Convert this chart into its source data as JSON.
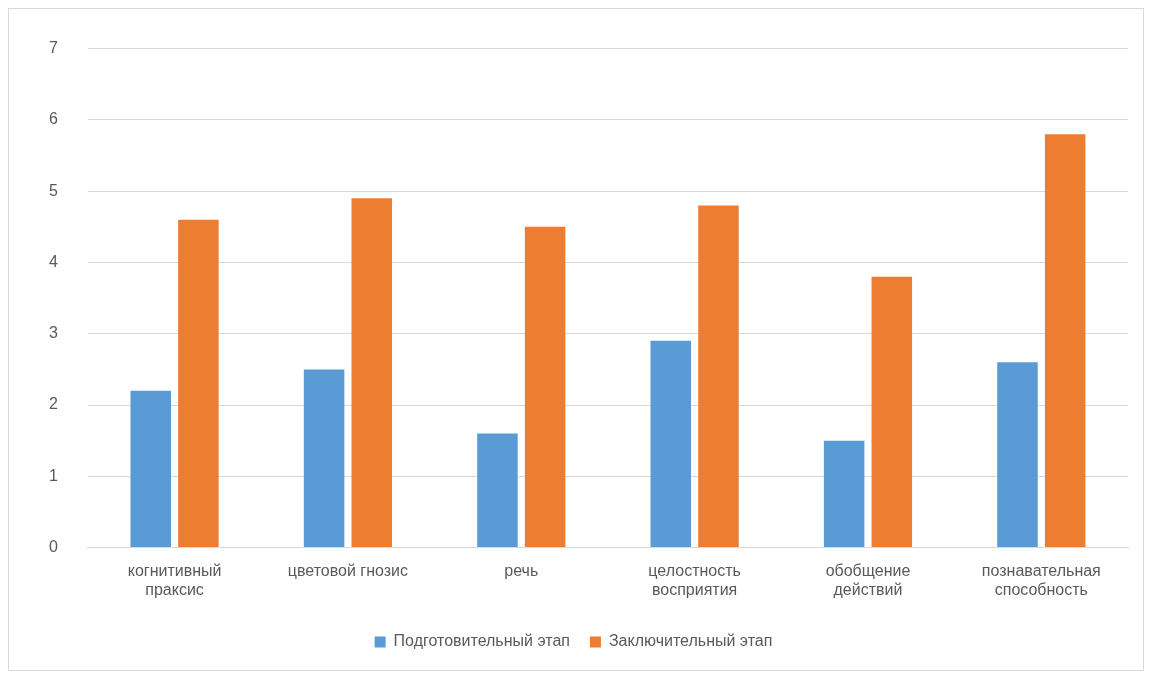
{
  "chart_data": {
    "type": "bar",
    "categories": [
      "когнитивный праксис",
      "цветовой гнозис",
      "речь",
      "целостность восприятия",
      "обобщение действий",
      "познавательная способность"
    ],
    "series": [
      {
        "name": "Подготовительный этап",
        "color": "#5b9bd5",
        "values": [
          2.2,
          2.5,
          1.6,
          2.9,
          1.5,
          2.6
        ]
      },
      {
        "name": "Заключительный этап",
        "color": "#ed7d31",
        "values": [
          4.6,
          4.9,
          4.5,
          4.8,
          3.8,
          5.8
        ]
      }
    ],
    "ylim": [
      0,
      7
    ],
    "yticks": [
      0,
      1,
      2,
      3,
      4,
      5,
      6,
      7
    ],
    "grid": "y",
    "legend": "bottom"
  }
}
